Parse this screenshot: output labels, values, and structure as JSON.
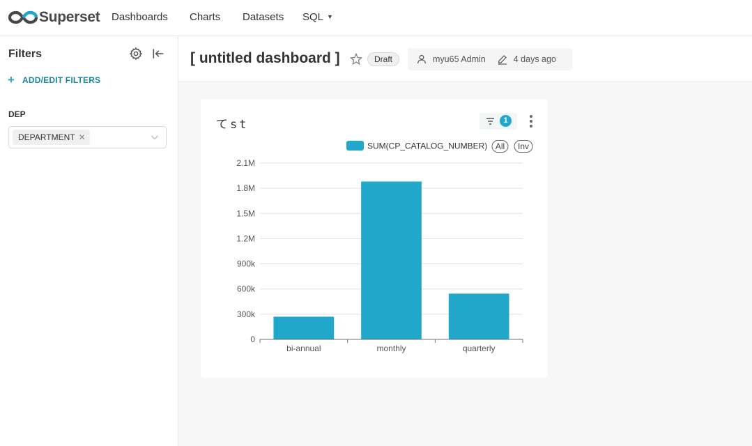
{
  "brand": {
    "name": "Superset"
  },
  "nav": {
    "items": [
      "Dashboards",
      "Charts",
      "Datasets"
    ],
    "sql_label": "SQL"
  },
  "sidebar": {
    "title": "Filters",
    "add_filters_label": "ADD/EDIT FILTERS",
    "filter": {
      "label": "DEP",
      "selected_tag": "DEPARTMENT"
    }
  },
  "dashboard": {
    "title": "[ untitled dashboard ]",
    "status": "Draft",
    "owner": "myu65 Admin",
    "modified": "4 days ago"
  },
  "chart": {
    "title": "てst",
    "applied_filter_count": "1",
    "legend_all": "All",
    "legend_inv": "Inv"
  },
  "colors": {
    "accent": "#20a7c9",
    "bar": "#20a7c9"
  },
  "chart_data": {
    "type": "bar",
    "categories": [
      "bi-annual",
      "monthly",
      "quarterly"
    ],
    "series": [
      {
        "name": "SUM(CP_CATALOG_NUMBER)",
        "values": [
          270000,
          1880000,
          545000
        ]
      }
    ],
    "ylim": [
      0,
      2100000
    ],
    "yticks": [
      0,
      300000,
      600000,
      900000,
      1200000,
      1500000,
      1800000,
      2100000
    ],
    "ytick_labels": [
      "0",
      "300k",
      "600k",
      "900k",
      "1.2M",
      "1.5M",
      "1.8M",
      "2.1M"
    ],
    "grid": true,
    "legend": "top-right"
  }
}
